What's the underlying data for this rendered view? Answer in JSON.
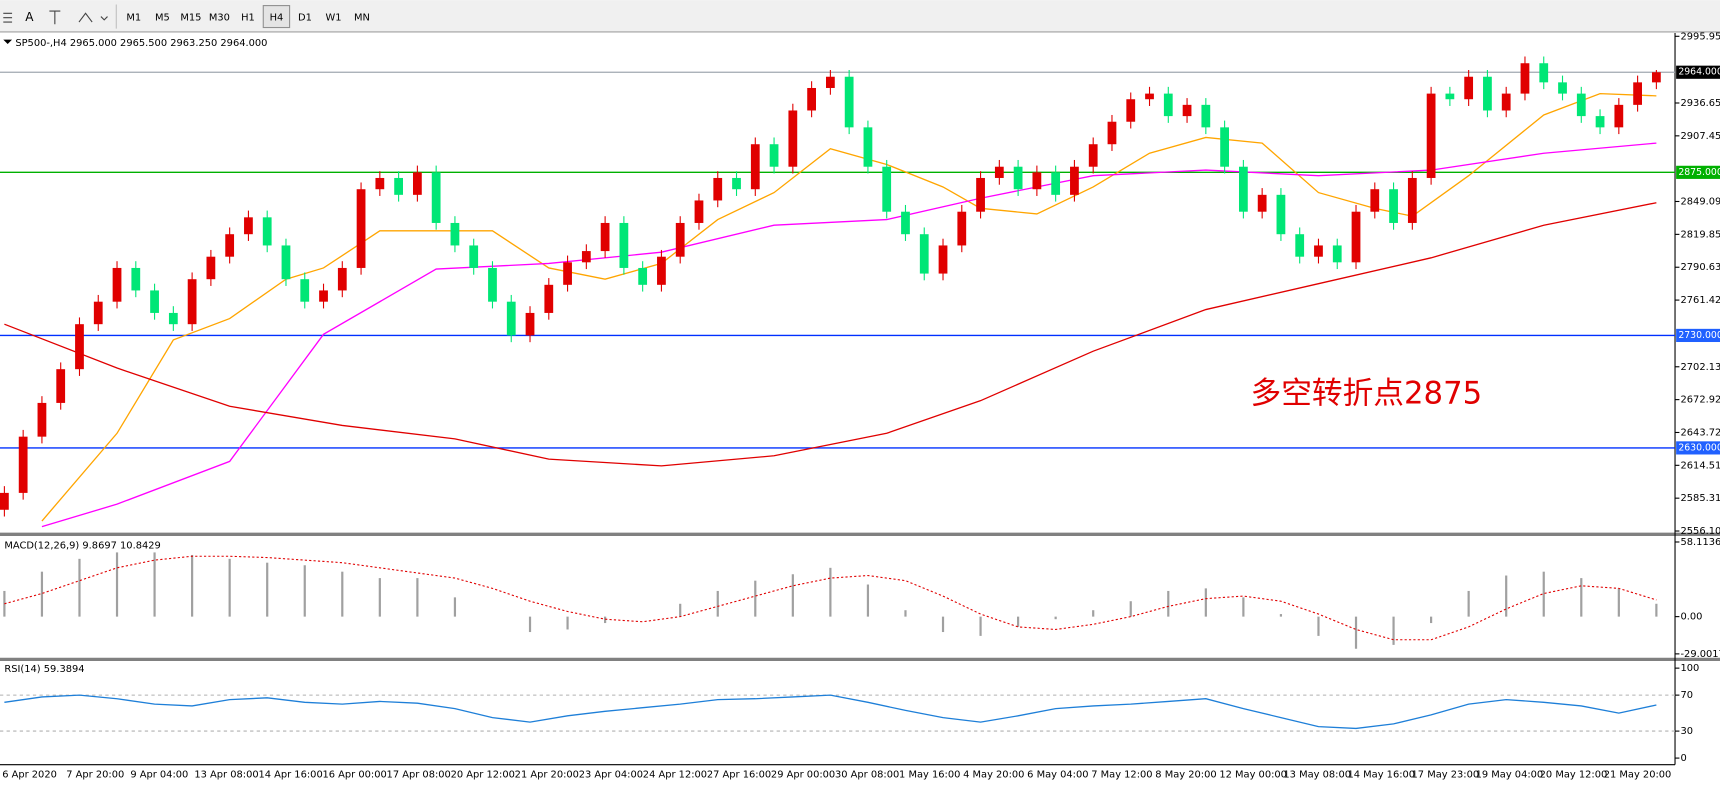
{
  "toolbar": {
    "timeframes": [
      "M1",
      "M5",
      "M15",
      "M30",
      "H1",
      "H4",
      "D1",
      "W1",
      "MN"
    ],
    "active": "H4"
  },
  "chart_data": [
    {
      "type": "candlestick",
      "title": "SP500-,H4 2965.000 2965.500 2963.250 2964.000",
      "up_color": "#e00000",
      "down_color": "#00e676",
      "candles": [
        [
          2575,
          2596,
          2569,
          2590
        ],
        [
          2590,
          2646,
          2584,
          2640
        ],
        [
          2640,
          2676,
          2634,
          2670
        ],
        [
          2670,
          2706,
          2664,
          2700
        ],
        [
          2700,
          2746,
          2694,
          2740
        ],
        [
          2740,
          2766,
          2734,
          2760
        ],
        [
          2760,
          2796,
          2754,
          2790
        ],
        [
          2790,
          2796,
          2764,
          2770
        ],
        [
          2770,
          2776,
          2744,
          2750
        ],
        [
          2750,
          2756,
          2734,
          2740
        ],
        [
          2740,
          2786,
          2734,
          2780
        ],
        [
          2780,
          2806,
          2774,
          2800
        ],
        [
          2800,
          2826,
          2794,
          2820
        ],
        [
          2820,
          2841,
          2814,
          2835
        ],
        [
          2835,
          2841,
          2804,
          2810
        ],
        [
          2810,
          2816,
          2774,
          2780
        ],
        [
          2780,
          2786,
          2754,
          2760
        ],
        [
          2760,
          2776,
          2754,
          2770
        ],
        [
          2770,
          2796,
          2764,
          2790
        ],
        [
          2790,
          2866,
          2784,
          2860
        ],
        [
          2860,
          2876,
          2854,
          2870
        ],
        [
          2870,
          2876,
          2849,
          2855
        ],
        [
          2855,
          2881,
          2849,
          2875
        ],
        [
          2875,
          2881,
          2824,
          2830
        ],
        [
          2830,
          2836,
          2804,
          2810
        ],
        [
          2810,
          2816,
          2784,
          2790
        ],
        [
          2790,
          2796,
          2754,
          2760
        ],
        [
          2760,
          2766,
          2724,
          2730
        ],
        [
          2730,
          2756,
          2724,
          2750
        ],
        [
          2750,
          2781,
          2744,
          2775
        ],
        [
          2775,
          2801,
          2769,
          2795
        ],
        [
          2795,
          2811,
          2789,
          2805
        ],
        [
          2805,
          2836,
          2799,
          2830
        ],
        [
          2830,
          2836,
          2784,
          2790
        ],
        [
          2790,
          2796,
          2769,
          2775
        ],
        [
          2775,
          2806,
          2769,
          2800
        ],
        [
          2800,
          2836,
          2794,
          2830
        ],
        [
          2830,
          2856,
          2824,
          2850
        ],
        [
          2850,
          2876,
          2844,
          2870
        ],
        [
          2870,
          2876,
          2854,
          2860
        ],
        [
          2860,
          2906,
          2854,
          2900
        ],
        [
          2900,
          2906,
          2874,
          2880
        ],
        [
          2880,
          2936,
          2874,
          2930
        ],
        [
          2930,
          2956,
          2924,
          2950
        ],
        [
          2950,
          2966,
          2944,
          2960
        ],
        [
          2960,
          2966,
          2909,
          2915
        ],
        [
          2915,
          2921,
          2874,
          2880
        ],
        [
          2880,
          2886,
          2834,
          2840
        ],
        [
          2840,
          2846,
          2814,
          2820
        ],
        [
          2820,
          2826,
          2779,
          2785
        ],
        [
          2785,
          2816,
          2779,
          2810
        ],
        [
          2810,
          2846,
          2804,
          2840
        ],
        [
          2840,
          2876,
          2834,
          2870
        ],
        [
          2870,
          2886,
          2864,
          2880
        ],
        [
          2880,
          2886,
          2854,
          2860
        ],
        [
          2860,
          2881,
          2854,
          2875
        ],
        [
          2875,
          2881,
          2849,
          2855
        ],
        [
          2855,
          2886,
          2849,
          2880
        ],
        [
          2880,
          2906,
          2874,
          2900
        ],
        [
          2900,
          2926,
          2894,
          2920
        ],
        [
          2920,
          2946,
          2914,
          2940
        ],
        [
          2940,
          2951,
          2934,
          2945
        ],
        [
          2945,
          2951,
          2919,
          2925
        ],
        [
          2925,
          2941,
          2919,
          2935
        ],
        [
          2935,
          2941,
          2909,
          2915
        ],
        [
          2915,
          2921,
          2874,
          2880
        ],
        [
          2880,
          2886,
          2834,
          2840
        ],
        [
          2840,
          2861,
          2834,
          2855
        ],
        [
          2855,
          2861,
          2814,
          2820
        ],
        [
          2820,
          2826,
          2794,
          2800
        ],
        [
          2800,
          2816,
          2794,
          2810
        ],
        [
          2810,
          2816,
          2789,
          2795
        ],
        [
          2795,
          2846,
          2789,
          2840
        ],
        [
          2840,
          2866,
          2834,
          2860
        ],
        [
          2860,
          2866,
          2824,
          2830
        ],
        [
          2830,
          2876,
          2824,
          2870
        ],
        [
          2870,
          2951,
          2864,
          2945
        ],
        [
          2945,
          2951,
          2934,
          2940
        ],
        [
          2940,
          2966,
          2934,
          2960
        ],
        [
          2960,
          2966,
          2924,
          2930
        ],
        [
          2930,
          2951,
          2924,
          2945
        ],
        [
          2945,
          2978,
          2939,
          2972
        ],
        [
          2972,
          2978,
          2949,
          2955
        ],
        [
          2955,
          2961,
          2939,
          2945
        ],
        [
          2945,
          2951,
          2919,
          2925
        ],
        [
          2925,
          2931,
          2909,
          2915
        ],
        [
          2915,
          2941,
          2909,
          2935
        ],
        [
          2935,
          2961,
          2929,
          2955
        ],
        [
          2955,
          2966,
          2949,
          2964
        ]
      ],
      "moving_averages": [
        {
          "color": "#ffa500",
          "x": [
            2,
            6,
            9,
            12,
            15,
            17,
            20,
            23,
            26,
            29,
            32,
            35,
            38,
            41,
            44,
            47,
            50,
            52,
            55,
            58,
            61,
            64,
            67,
            70,
            73,
            75,
            78,
            82,
            85,
            88
          ],
          "values": [
            2565,
            2643,
            2726,
            2745,
            2780,
            2790,
            2823,
            2823,
            2823,
            2790,
            2780,
            2794,
            2833,
            2857,
            2896,
            2882,
            2862,
            2843,
            2838,
            2862,
            2892,
            2906,
            2901,
            2857,
            2843,
            2836,
            2872,
            2926,
            2945,
            2943
          ]
        },
        {
          "color": "#ff00ff",
          "x": [
            2,
            6,
            12,
            17,
            23,
            29,
            35,
            41,
            47,
            52,
            58,
            64,
            70,
            76,
            82,
            88
          ],
          "values": [
            2560,
            2580,
            2618,
            2731,
            2789,
            2794,
            2804,
            2828,
            2833,
            2852,
            2872,
            2877,
            2872,
            2877,
            2892,
            2901
          ]
        },
        {
          "color": "#e00000",
          "x": [
            0,
            6,
            12,
            18,
            24,
            29,
            35,
            41,
            47,
            52,
            58,
            64,
            70,
            76,
            82,
            88
          ],
          "values": [
            2740,
            2701,
            2667,
            2650,
            2638,
            2620,
            2614,
            2623,
            2643,
            2672,
            2716,
            2753,
            2776,
            2799,
            2828,
            2848
          ]
        }
      ],
      "hlines": [
        {
          "value": 2964,
          "label": "2964.000",
          "color": "#a0a8b0",
          "label_color": "#000000"
        },
        {
          "value": 2875,
          "label": "2875.000",
          "color": "#00b000",
          "label_color": "#00b000"
        },
        {
          "value": 2730,
          "label": "2730.000",
          "color": "#0030ff",
          "label_color": "#2060ff"
        },
        {
          "value": 2630,
          "label": "2630.000",
          "color": "#0030ff",
          "label_color": "#2060ff"
        }
      ],
      "ylim": [
        2556.105,
        2995.95
      ],
      "yticks": [
        {
          "value": 2995.95,
          "label": "2995.950"
        },
        2936.655,
        {
          "value": 2907.45,
          "label": "2907.450"
        },
        {
          "value": 2849.09,
          "label": "2849.090"
        },
        2819.855,
        {
          "value": 2790.63,
          "label": "2790.630"
        },
        2761.425,
        {
          "value": 2702.13,
          "label": "2702.130"
        },
        2672.925,
        {
          "value": 2643.72,
          "label": "2643.720"
        },
        2614.515,
        {
          "value": 2585.31,
          "label": "2585.310"
        },
        2556.105
      ],
      "annotation": "多空转折点2875",
      "x_labels": [
        "6 Apr 2020",
        "7 Apr 20:00",
        "9 Apr 04:00",
        "13 Apr 08:00",
        "14 Apr 16:00",
        "16 Apr 00:00",
        "17 Apr 08:00",
        "20 Apr 12:00",
        "21 Apr 20:00",
        "23 Apr 04:00",
        "24 Apr 12:00",
        "27 Apr 16:00",
        "29 Apr 00:00",
        "30 Apr 08:00",
        "1 May 16:00",
        "4 May 20:00",
        "6 May 04:00",
        "7 May 12:00",
        "8 May 20:00",
        "12 May 00:00",
        "13 May 08:00",
        "14 May 16:00",
        "17 May 23:00",
        "19 May 04:00",
        "20 May 12:00",
        "21 May 20:00"
      ]
    },
    {
      "type": "macd",
      "title": "MACD(12,26,9) 9.8697 10.8429",
      "ylim": [
        -29.0017,
        58.1136
      ],
      "yticks": [
        58.1136,
        {
          "value": 0,
          "label": "0.00"
        },
        -29.0017
      ],
      "histogram_color": "#a0a0a0",
      "signal_color": "#e00000",
      "histogram": [
        20,
        35,
        45,
        50,
        50,
        48,
        45,
        42,
        40,
        35,
        30,
        30,
        15,
        0,
        -12,
        -10,
        -5,
        0,
        10,
        20,
        28,
        33,
        38,
        25,
        5,
        -12,
        -15,
        -8,
        -2,
        5,
        12,
        20,
        22,
        15,
        2,
        -15,
        -25,
        -22,
        -5,
        20,
        32,
        35,
        30,
        22,
        10
      ],
      "signal": [
        10,
        18,
        28,
        38,
        44,
        47,
        47,
        46,
        44,
        42,
        38,
        34,
        30,
        22,
        12,
        4,
        -2,
        -4,
        0,
        8,
        16,
        24,
        30,
        32,
        28,
        16,
        2,
        -8,
        -10,
        -6,
        0,
        8,
        14,
        16,
        12,
        2,
        -10,
        -18,
        -18,
        -8,
        6,
        18,
        24,
        22,
        13
      ]
    },
    {
      "type": "line",
      "title": "RSI(14) 59.3894",
      "ylim": [
        0,
        100
      ],
      "yticks": [
        100,
        70,
        30,
        0
      ],
      "levels": [
        70,
        30
      ],
      "color": "#1e7fd8",
      "values": [
        62,
        68,
        70,
        66,
        60,
        58,
        65,
        67,
        62,
        60,
        63,
        61,
        55,
        45,
        40,
        47,
        52,
        56,
        60,
        65,
        66,
        68,
        70,
        62,
        53,
        45,
        40,
        47,
        55,
        58,
        60,
        63,
        66,
        55,
        45,
        35,
        33,
        38,
        48,
        60,
        65,
        62,
        58,
        50,
        59
      ]
    }
  ]
}
